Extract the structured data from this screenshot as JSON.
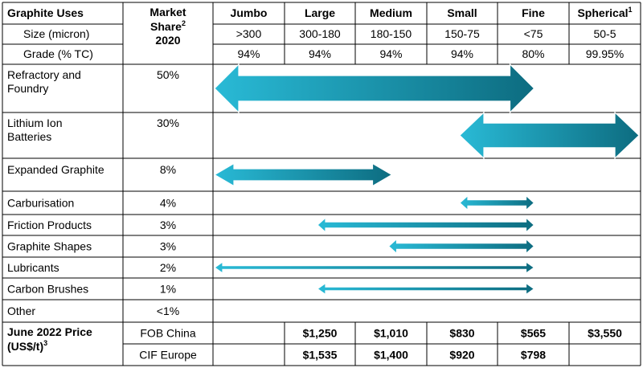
{
  "header": {
    "uses_label": "Graphite Uses",
    "share_label_line1": "Market",
    "share_label_line2": "Share",
    "share_label_sup": "2",
    "share_label_year": "2020",
    "size_label": "Size (micron)",
    "grade_label": "Grade (% TC)",
    "columns": [
      {
        "name": "Jumbo",
        "sup": "",
        "size": ">300",
        "grade": "94%"
      },
      {
        "name": "Large",
        "sup": "",
        "size": "300-180",
        "grade": "94%"
      },
      {
        "name": "Medium",
        "sup": "",
        "size": "180-150",
        "grade": "94%"
      },
      {
        "name": "Small",
        "sup": "",
        "size": "150-75",
        "grade": "94%"
      },
      {
        "name": "Fine",
        "sup": "",
        "size": "<75",
        "grade": "80%"
      },
      {
        "name": "Spherical",
        "sup": "1",
        "size": "50-5",
        "grade": "99.95%"
      }
    ]
  },
  "rows": [
    {
      "use": "Refractory and Foundry",
      "use_line1": "Refractory and",
      "use_line2": "Foundry",
      "share": "50%",
      "range": [
        "Jumbo",
        "Fine"
      ]
    },
    {
      "use": "Lithium Ion Batteries",
      "use_line1": "Lithium Ion",
      "use_line2": "Batteries",
      "share": "30%",
      "range": [
        "Small",
        "Spherical"
      ]
    },
    {
      "use": "Expanded Graphite",
      "use_line1": "Expanded Graphite",
      "use_line2": "",
      "share": "8%",
      "range": [
        "Jumbo",
        "Medium"
      ]
    },
    {
      "use": "Carburisation",
      "use_line1": "Carburisation",
      "use_line2": "",
      "share": "4%",
      "range": [
        "Small",
        "Fine"
      ]
    },
    {
      "use": "Friction Products",
      "use_line1": "Friction Products",
      "use_line2": "",
      "share": "3%",
      "range": [
        "Large",
        "Fine"
      ]
    },
    {
      "use": "Graphite Shapes",
      "use_line1": "Graphite Shapes",
      "use_line2": "",
      "share": "3%",
      "range": [
        "Medium",
        "Fine"
      ]
    },
    {
      "use": "Lubricants",
      "use_line1": "Lubricants",
      "use_line2": "",
      "share": "2%",
      "range": [
        "Jumbo",
        "Fine"
      ]
    },
    {
      "use": "Carbon Brushes",
      "use_line1": "Carbon Brushes",
      "use_line2": "",
      "share": "1%",
      "range": [
        "Large",
        "Fine"
      ]
    },
    {
      "use": "Other",
      "use_line1": "Other",
      "use_line2": "",
      "share": "<1%",
      "range": null
    }
  ],
  "price": {
    "label_line1": "June 2022 Price",
    "label_line2": "(US$/t)",
    "label_sup": "3",
    "rows": [
      {
        "basis": "FOB China",
        "values": [
          "",
          "$1,250",
          "$1,010",
          "$830",
          "$565",
          "$3,550"
        ]
      },
      {
        "basis": "CIF Europe",
        "values": [
          "",
          "$1,535",
          "$1,400",
          "$920",
          "$798",
          ""
        ]
      }
    ]
  },
  "colors": {
    "arrow_light": "#29bad6",
    "arrow_dark": "#0d6c80",
    "grid": "#000000"
  }
}
